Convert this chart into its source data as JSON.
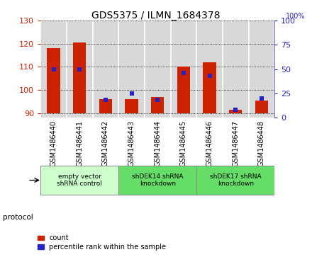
{
  "title": "GDS5375 / ILMN_1684378",
  "samples": [
    "GSM1486440",
    "GSM1486441",
    "GSM1486442",
    "GSM1486443",
    "GSM1486444",
    "GSM1486445",
    "GSM1486446",
    "GSM1486447",
    "GSM1486448"
  ],
  "count_values": [
    118,
    120.5,
    96,
    96,
    97,
    110,
    112,
    91.5,
    95.5
  ],
  "percentile_values": [
    50,
    50,
    18,
    25,
    18,
    46,
    43,
    8,
    20
  ],
  "ylim_left": [
    88,
    130
  ],
  "ylim_right": [
    0,
    100
  ],
  "yticks_left": [
    90,
    100,
    110,
    120,
    130
  ],
  "yticks_right": [
    0,
    25,
    50,
    75,
    100
  ],
  "bar_bottom": 90,
  "red_color": "#cc2200",
  "blue_color": "#2222cc",
  "bg_color": "#d8d8d8",
  "xticklabel_bg": "#d8d8d8",
  "protocols": [
    {
      "label": "empty vector\nshRNA control",
      "start": 0,
      "end": 3,
      "color": "#ccffcc"
    },
    {
      "label": "shDEK14 shRNA\nknockdown",
      "start": 3,
      "end": 6,
      "color": "#66dd66"
    },
    {
      "label": "shDEK17 shRNA\nknockdown",
      "start": 6,
      "end": 9,
      "color": "#66dd66"
    }
  ],
  "red_bar_width": 0.5,
  "blue_marker_size": 5
}
